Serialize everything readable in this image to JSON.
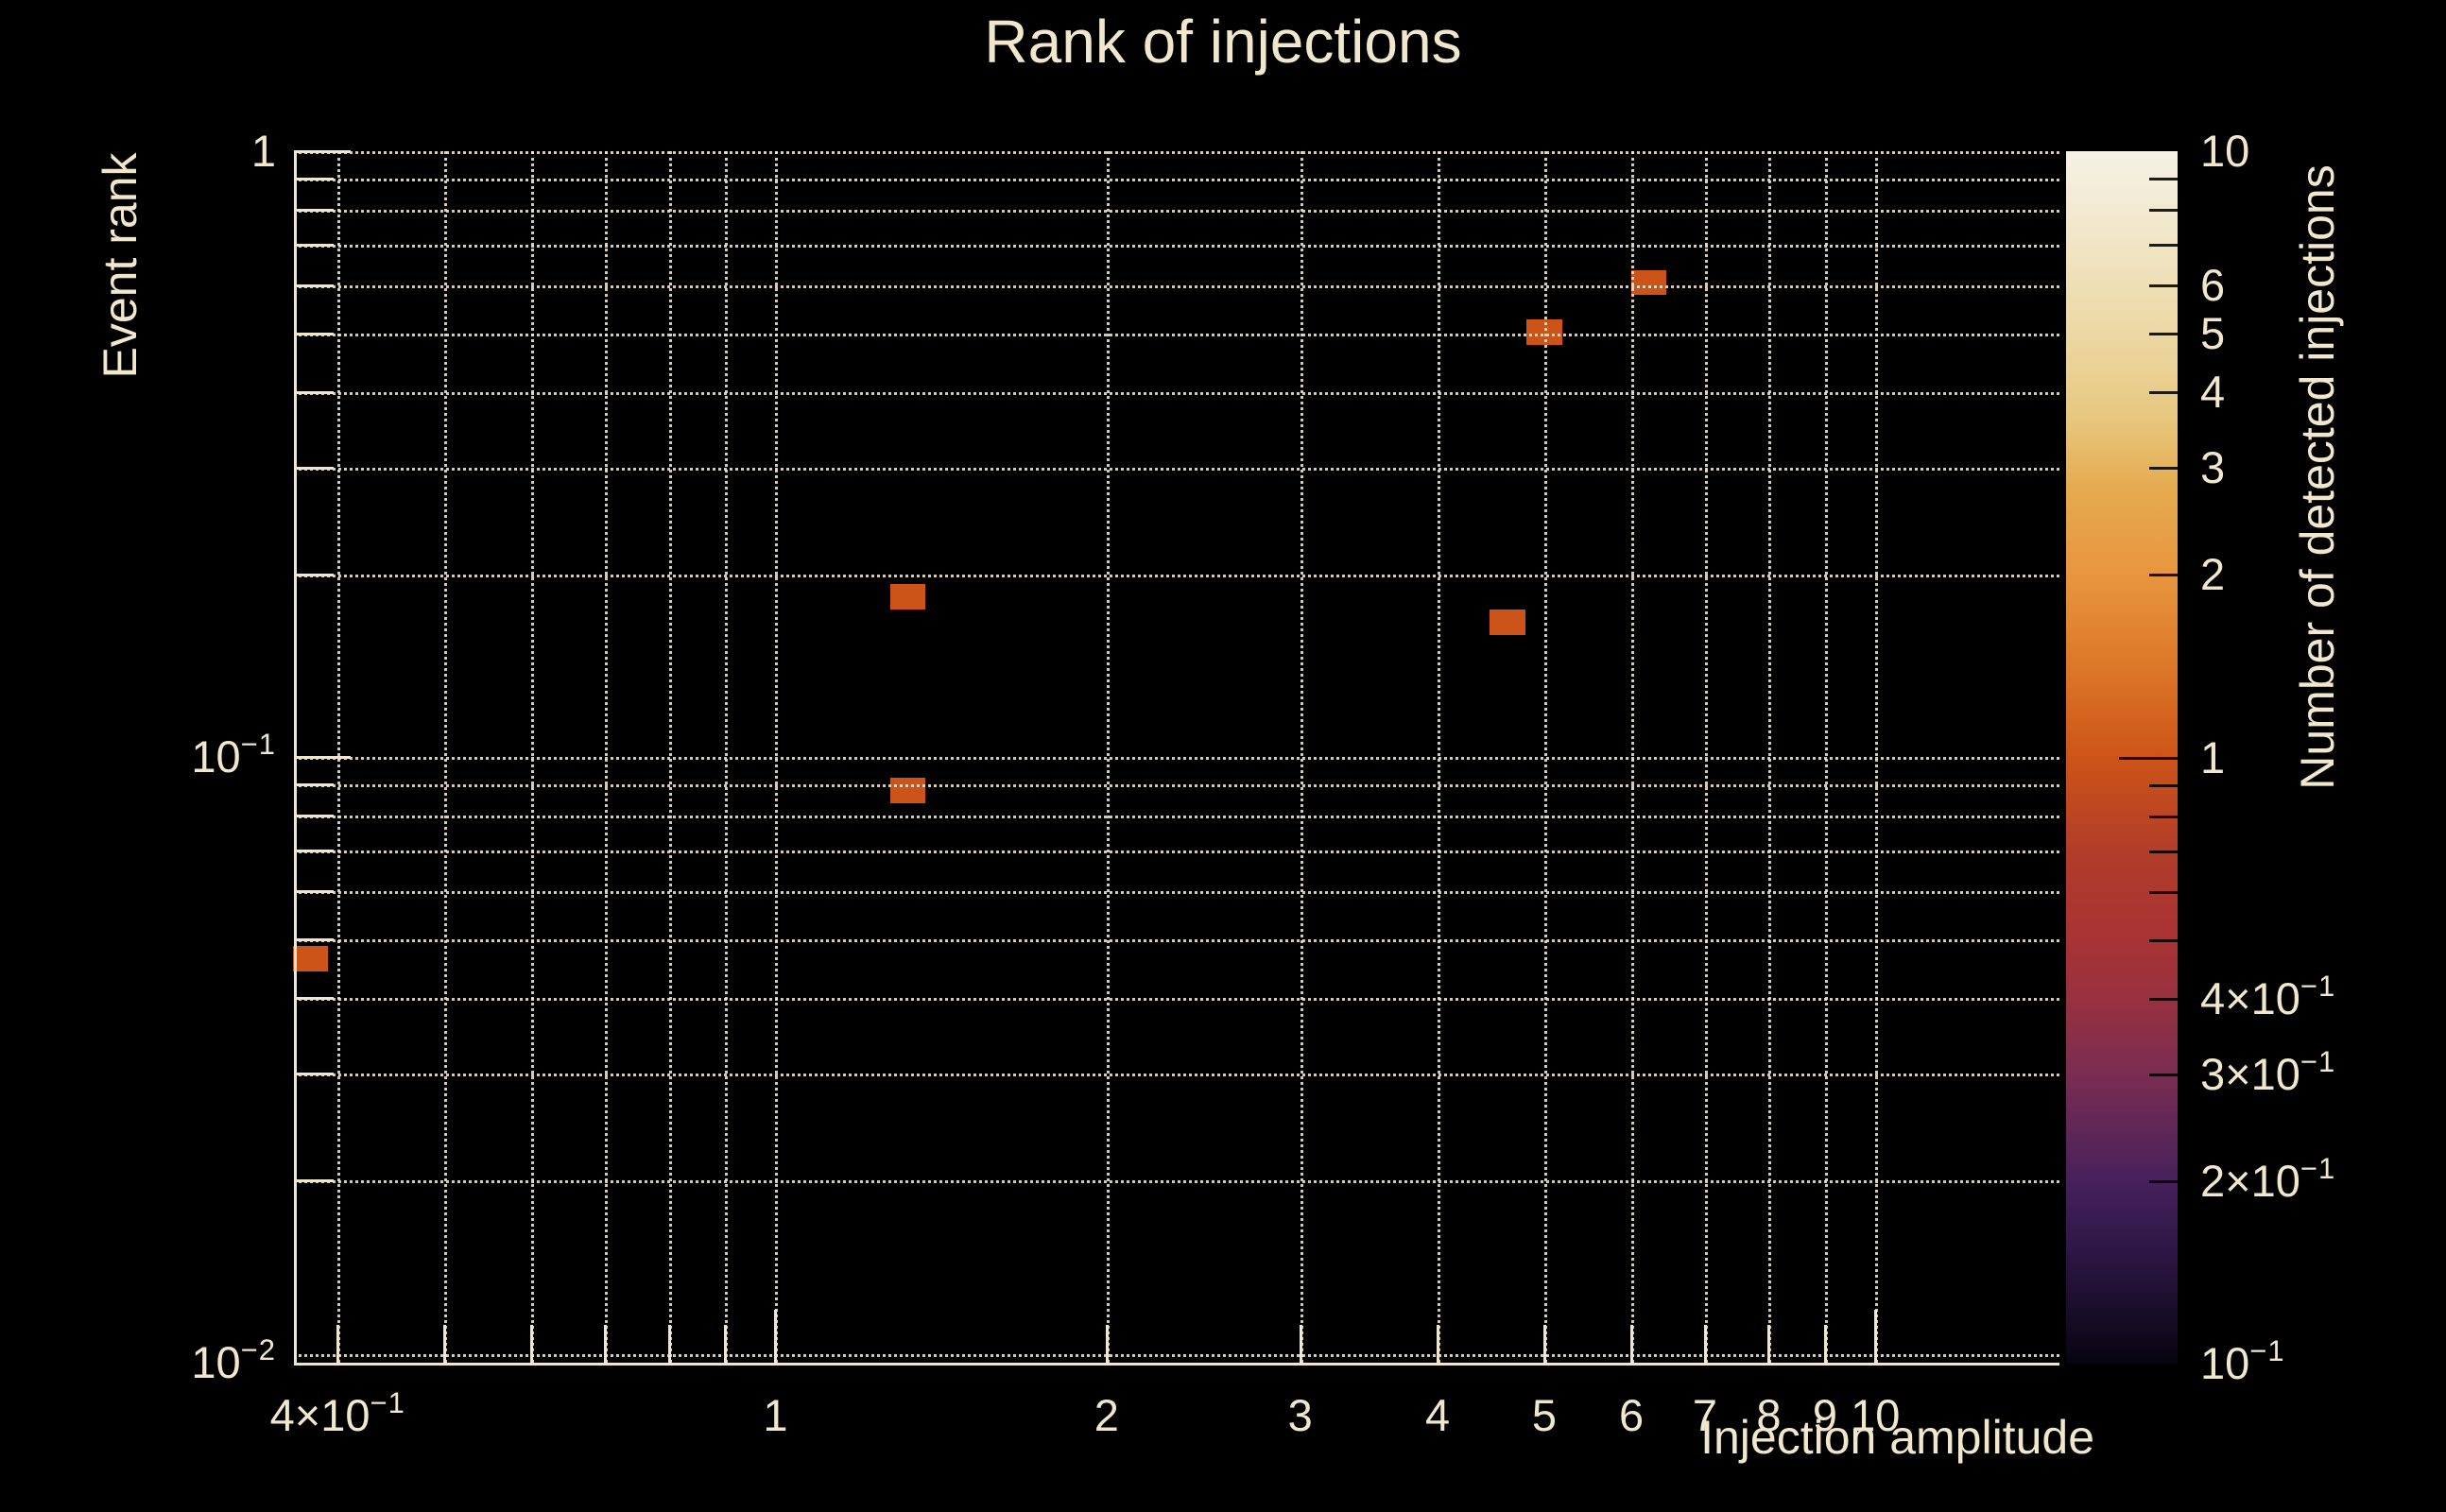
{
  "colors": {
    "background": "#000000",
    "text": "#f0e7cd",
    "spine": "#efe6cd",
    "grid": "#f0e7d1",
    "cell_count1": "#d0541a"
  },
  "chart_data": {
    "type": "heatmap",
    "title": "Rank of injections",
    "xlabel": "Injection amplitude",
    "ylabel": "Event rank",
    "colorbar_label": "Number of detected injections",
    "xscale": "log",
    "yscale": "log",
    "zscale": "log",
    "xlim": [
      0.365,
      14.7
    ],
    "ylim": [
      0.01,
      1.0
    ],
    "zlim": [
      0.1,
      10
    ],
    "grid": "both-major-and-minor, dotted",
    "legend_position": "colorbar-right",
    "cell_size_decades": {
      "x": 0.032,
      "y": 0.042
    },
    "points": [
      {
        "x": 0.378,
        "y": 0.0465,
        "count": 1
      },
      {
        "x": 1.32,
        "y": 0.184,
        "count": 1
      },
      {
        "x": 1.32,
        "y": 0.088,
        "count": 1
      },
      {
        "x": 4.63,
        "y": 0.167,
        "count": 1
      },
      {
        "x": 5.0,
        "y": 0.503,
        "count": 1
      },
      {
        "x": 6.22,
        "y": 0.607,
        "count": 1
      }
    ],
    "x_ticks": [
      {
        "v": 0.4,
        "base": "4×10",
        "exp": "−1"
      },
      {
        "v": 0.5
      },
      {
        "v": 0.6
      },
      {
        "v": 0.7
      },
      {
        "v": 0.8
      },
      {
        "v": 0.9
      },
      {
        "v": 1,
        "base": "1",
        "major": true
      },
      {
        "v": 2,
        "base": "2"
      },
      {
        "v": 3,
        "base": "3"
      },
      {
        "v": 4,
        "base": "4"
      },
      {
        "v": 5,
        "base": "5"
      },
      {
        "v": 6,
        "base": "6"
      },
      {
        "v": 7,
        "base": "7"
      },
      {
        "v": 8,
        "base": "8"
      },
      {
        "v": 9,
        "base": "9"
      },
      {
        "v": 10,
        "base": "10",
        "major": true
      }
    ],
    "y_ticks": [
      {
        "v": 1,
        "base": "1",
        "major": true
      },
      {
        "v": 0.9
      },
      {
        "v": 0.8
      },
      {
        "v": 0.7
      },
      {
        "v": 0.6
      },
      {
        "v": 0.5
      },
      {
        "v": 0.4
      },
      {
        "v": 0.3
      },
      {
        "v": 0.2
      },
      {
        "v": 0.1,
        "base": "10",
        "exp": "−1",
        "major": true
      },
      {
        "v": 0.09
      },
      {
        "v": 0.08
      },
      {
        "v": 0.07
      },
      {
        "v": 0.06
      },
      {
        "v": 0.05
      },
      {
        "v": 0.04
      },
      {
        "v": 0.03
      },
      {
        "v": 0.02
      },
      {
        "v": 0.01,
        "base": "10",
        "exp": "−2",
        "major": true,
        "spine": true
      }
    ],
    "cbar_ticks": [
      {
        "v": 10,
        "base": "10",
        "major": true,
        "edge": true
      },
      {
        "v": 9
      },
      {
        "v": 8
      },
      {
        "v": 7
      },
      {
        "v": 6,
        "base": "6"
      },
      {
        "v": 5,
        "base": "5"
      },
      {
        "v": 4,
        "base": "4"
      },
      {
        "v": 3,
        "base": "3"
      },
      {
        "v": 2,
        "base": "2"
      },
      {
        "v": 1,
        "base": "1",
        "major": true
      },
      {
        "v": 0.9
      },
      {
        "v": 0.8
      },
      {
        "v": 0.7
      },
      {
        "v": 0.6
      },
      {
        "v": 0.5
      },
      {
        "v": 0.4,
        "base": "4×10",
        "exp": "−1"
      },
      {
        "v": 0.3,
        "base": "3×10",
        "exp": "−1"
      },
      {
        "v": 0.2,
        "base": "2×10",
        "exp": "−1"
      },
      {
        "v": 0.1,
        "base": "10",
        "exp": "−1",
        "major": true,
        "edge": true
      }
    ],
    "colormap_stops": [
      [
        0.0,
        "#070410"
      ],
      [
        0.03,
        "#130b22"
      ],
      [
        0.09,
        "#2c1644"
      ],
      [
        0.15,
        "#46215c"
      ],
      [
        0.24,
        "#7b2d52"
      ],
      [
        0.3,
        "#983140"
      ],
      [
        0.35,
        "#a73335"
      ],
      [
        0.42,
        "#b13c2a"
      ],
      [
        0.5,
        "#cd5418"
      ],
      [
        0.58,
        "#dd7a2a"
      ],
      [
        0.65,
        "#e8953f"
      ],
      [
        0.72,
        "#e6aa4e"
      ],
      [
        0.78,
        "#e7c77f"
      ],
      [
        0.85,
        "#ecd8a4"
      ],
      [
        0.93,
        "#f1e6c8"
      ],
      [
        1.0,
        "#f5f2e6"
      ]
    ]
  }
}
